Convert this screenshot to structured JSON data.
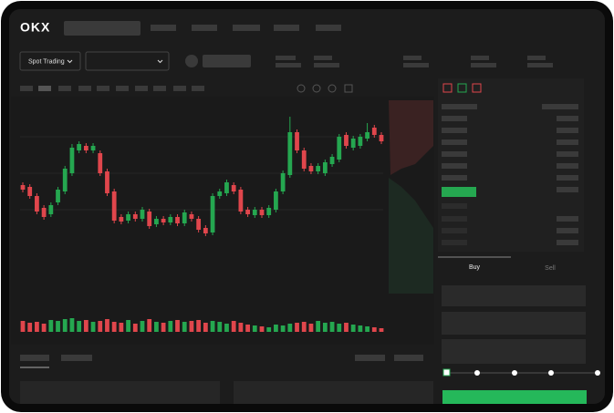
{
  "header": {
    "logo": "OKX",
    "market_select": "Spot Trading"
  },
  "chart": {
    "type": "candlestick",
    "ylim": [
      0,
      160
    ],
    "volume_lim": [
      0,
      16
    ],
    "up_color": "#25a750",
    "down_color": "#e0464c",
    "ohlc": [
      [
        67,
        70,
        59,
        62
      ],
      [
        65,
        68,
        52,
        55
      ],
      [
        55,
        58,
        35,
        38
      ],
      [
        42,
        45,
        29,
        32
      ],
      [
        35,
        48,
        32,
        45
      ],
      [
        48,
        65,
        45,
        62
      ],
      [
        60,
        88,
        57,
        85
      ],
      [
        80,
        112,
        77,
        108
      ],
      [
        105,
        115,
        102,
        112
      ],
      [
        110,
        113,
        102,
        105
      ],
      [
        105,
        113,
        102,
        110
      ],
      [
        102,
        105,
        77,
        80
      ],
      [
        82,
        85,
        55,
        58
      ],
      [
        60,
        63,
        25,
        28
      ],
      [
        32,
        35,
        24,
        27
      ],
      [
        28,
        38,
        25,
        35
      ],
      [
        35,
        38,
        27,
        30
      ],
      [
        30,
        43,
        27,
        40
      ],
      [
        38,
        41,
        19,
        22
      ],
      [
        24,
        33,
        21,
        30
      ],
      [
        30,
        33,
        23,
        26
      ],
      [
        26,
        35,
        23,
        32
      ],
      [
        32,
        35,
        22,
        25
      ],
      [
        25,
        40,
        22,
        37
      ],
      [
        35,
        38,
        27,
        30
      ],
      [
        30,
        33,
        15,
        18
      ],
      [
        20,
        23,
        11,
        14
      ],
      [
        15,
        58,
        12,
        55
      ],
      [
        55,
        63,
        52,
        60
      ],
      [
        58,
        73,
        55,
        70
      ],
      [
        67,
        70,
        57,
        60
      ],
      [
        62,
        65,
        35,
        38
      ],
      [
        40,
        43,
        32,
        35
      ],
      [
        34,
        43,
        31,
        40
      ],
      [
        40,
        43,
        31,
        34
      ],
      [
        34,
        45,
        31,
        42
      ],
      [
        40,
        63,
        37,
        60
      ],
      [
        60,
        83,
        57,
        80
      ],
      [
        78,
        142,
        75,
        125
      ],
      [
        125,
        128,
        102,
        105
      ],
      [
        105,
        108,
        82,
        85
      ],
      [
        88,
        91,
        79,
        82
      ],
      [
        82,
        91,
        79,
        88
      ],
      [
        80,
        95,
        77,
        92
      ],
      [
        90,
        101,
        87,
        98
      ],
      [
        95,
        123,
        92,
        120
      ],
      [
        122,
        125,
        107,
        110
      ],
      [
        108,
        121,
        105,
        118
      ],
      [
        110,
        123,
        107,
        120
      ],
      [
        118,
        135,
        115,
        125
      ],
      [
        130,
        133,
        119,
        122
      ],
      [
        122,
        125,
        112,
        115
      ]
    ],
    "volume": [
      12,
      10,
      11,
      9,
      13,
      12,
      14,
      15,
      12,
      13,
      11,
      12,
      14,
      11,
      10,
      13,
      9,
      12,
      14,
      11,
      10,
      12,
      13,
      11,
      12,
      13,
      10,
      12,
      11,
      9,
      12,
      10,
      8,
      7,
      6,
      5,
      8,
      7,
      9,
      10,
      11,
      9,
      12,
      10,
      11,
      9,
      10,
      8,
      7,
      6,
      5,
      4
    ]
  },
  "order_form": {
    "tabs": [
      "Buy",
      "Sell"
    ]
  }
}
